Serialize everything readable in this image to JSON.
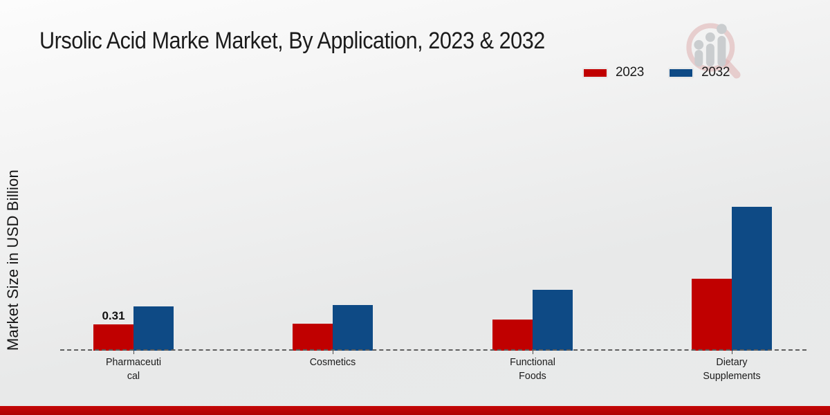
{
  "chart_data": {
    "type": "bar",
    "title": "Ursolic Acid Marke Market, By Application, 2023 & 2032",
    "xlabel": "",
    "ylabel": "Market Size in USD Billion",
    "categories": [
      "Pharmaceutical",
      "Cosmetics",
      "Functional Foods",
      "Dietary Supplements"
    ],
    "category_display": [
      "Pharmaceuti\ncal",
      "Cosmetics",
      "Functional\nFoods",
      "Dietary\nSupplements"
    ],
    "series": [
      {
        "name": "2023",
        "color": "#c00000",
        "values": [
          0.31,
          0.32,
          0.37,
          0.85
        ]
      },
      {
        "name": "2032",
        "color": "#0e4a85",
        "values": [
          0.52,
          0.54,
          0.72,
          1.7
        ]
      }
    ],
    "annotations": [
      {
        "text": "0.31",
        "series_index": 0,
        "category_index": 0
      }
    ],
    "ylim": [
      0,
      2.0
    ],
    "grid": false,
    "legend_position": "top-right",
    "baseline_style": "dashed"
  },
  "watermark": {
    "icon": "magnifier-growth-chart-icon",
    "ring_color": "#dba8a8",
    "bar_color": "#c6c9cc"
  },
  "footer": {
    "accent_color": "#b80606"
  }
}
